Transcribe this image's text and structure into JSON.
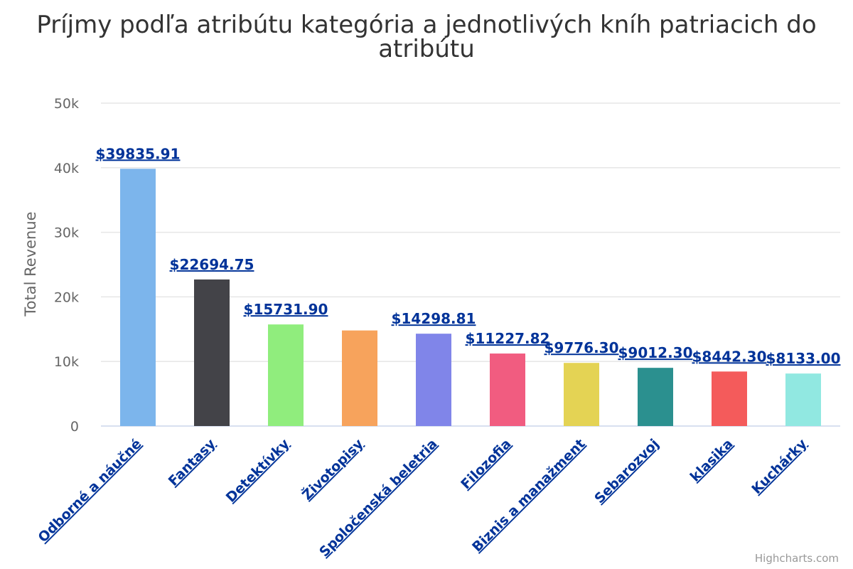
{
  "chart_data": {
    "type": "bar",
    "title": "Príjmy podľa atribútu kategória a jednotlivých kníh patriacich do atribútu",
    "xlabel": "",
    "ylabel": "Total Revenue",
    "ylim": [
      0,
      50000
    ],
    "yticks": [
      {
        "value": 0,
        "label": "0"
      },
      {
        "value": 10000,
        "label": "10k"
      },
      {
        "value": 20000,
        "label": "20k"
      },
      {
        "value": 30000,
        "label": "30k"
      },
      {
        "value": 40000,
        "label": "40k"
      },
      {
        "value": 50000,
        "label": "50k"
      }
    ],
    "grid": true,
    "legend": "none",
    "categories": [
      "Odborné a náučné",
      "Fantasy",
      "Detektívky",
      "Životopisy",
      "Spoločenská beletria",
      "Filozofia",
      "Biznis a manažment",
      "Sebarozvoj",
      "klasika",
      "Kuchárky"
    ],
    "values": [
      39835.91,
      22694.75,
      15731.9,
      14800,
      14298.81,
      11227.82,
      9776.3,
      9012.3,
      8442.3,
      8133.0
    ],
    "data_labels": [
      "$39835.91",
      "$22694.75",
      "$15731.90",
      "",
      "$14298.81",
      "$11227.82",
      "$9776.30",
      "$9012.30",
      "$8442.30",
      "$8133.00"
    ],
    "colors": [
      "#7cb5ec",
      "#434348",
      "#90ed7d",
      "#f7a35c",
      "#8085e9",
      "#f15c80",
      "#e4d354",
      "#2b908f",
      "#f45b5b",
      "#91e8e1"
    ]
  },
  "credits": "Highcharts.com"
}
